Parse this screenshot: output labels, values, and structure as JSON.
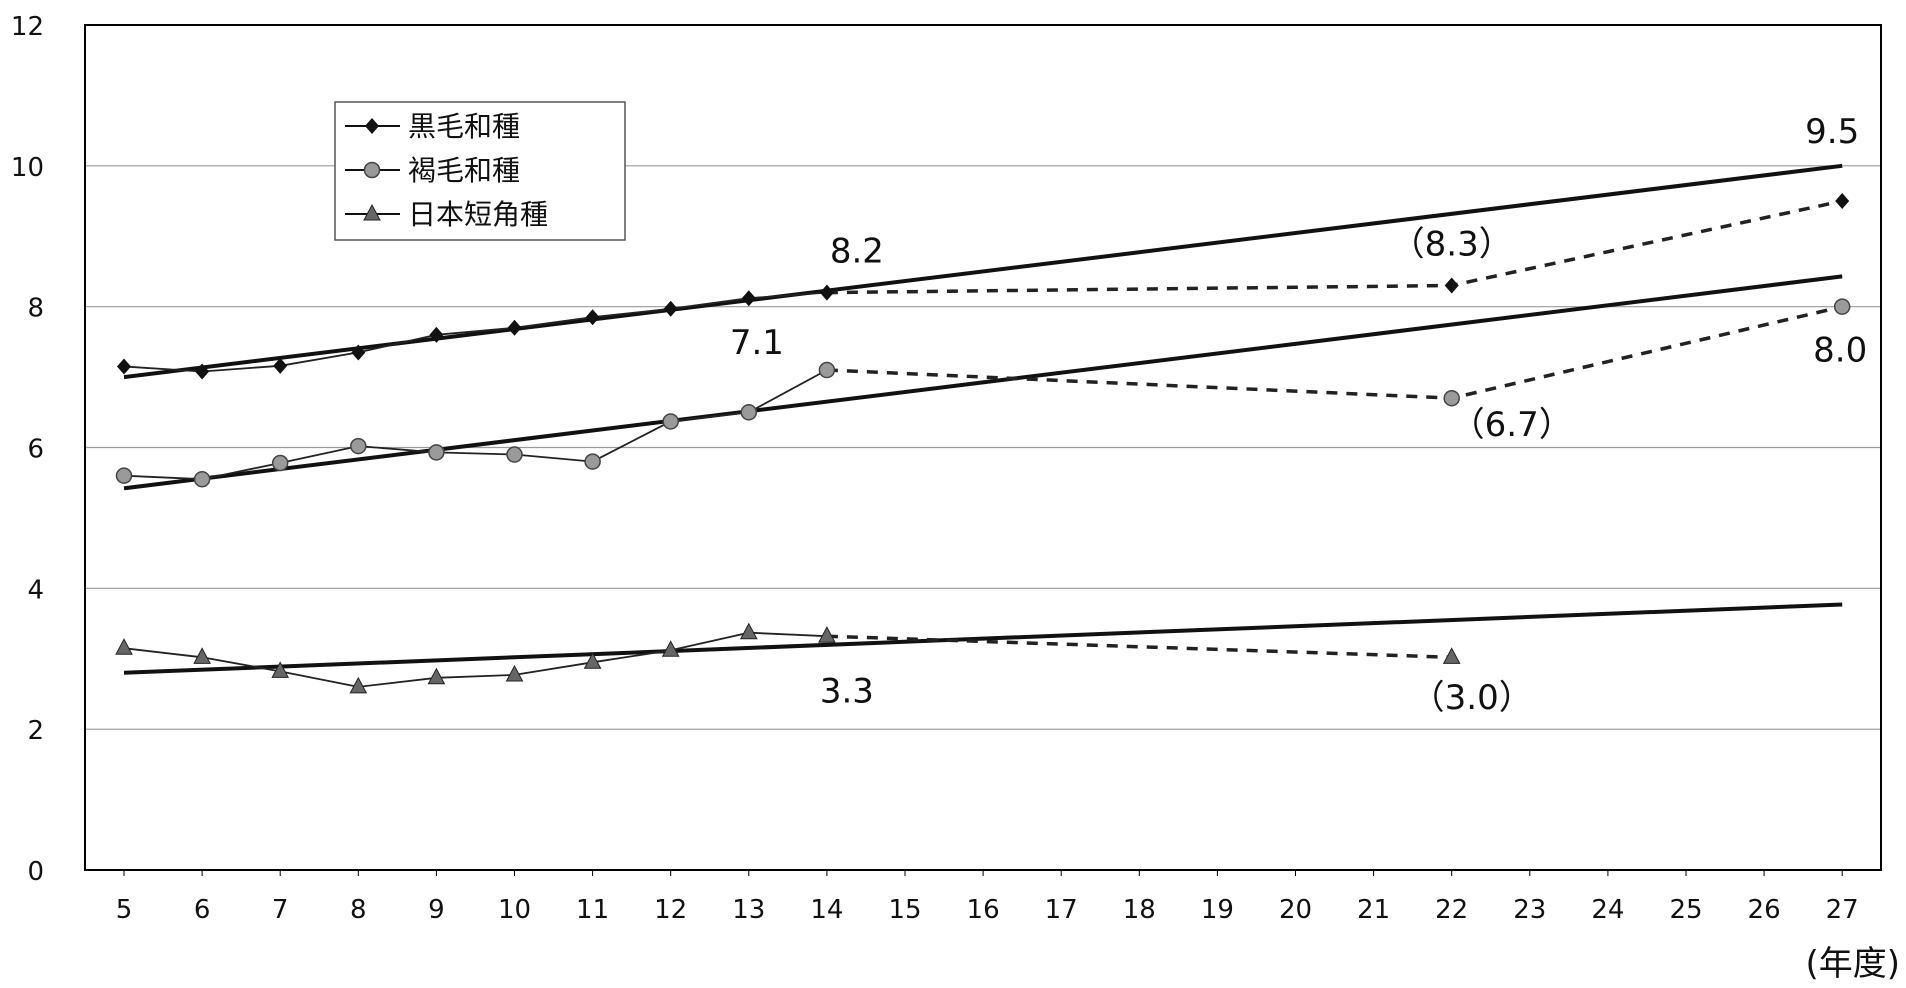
{
  "chart_data": {
    "type": "line",
    "title": "",
    "xlabel": "(年度)",
    "ylabel": "",
    "ylim": [
      0,
      12
    ],
    "y_ticks": [
      "0",
      "2",
      "4",
      "6",
      "8",
      "10",
      "12"
    ],
    "x_ticks": [
      "5",
      "6",
      "7",
      "8",
      "9",
      "10",
      "11",
      "12",
      "13",
      "14",
      "15",
      "16",
      "17",
      "18",
      "19",
      "20",
      "21",
      "22",
      "23",
      "24",
      "25",
      "26",
      "27"
    ],
    "grid": "horizontal",
    "legend_position": "top-left",
    "series": [
      {
        "name": "黒毛和種",
        "marker": "diamond",
        "color": "#111111",
        "points": [
          [
            5,
            7.15
          ],
          [
            6,
            7.08
          ],
          [
            7,
            7.16
          ],
          [
            8,
            7.35
          ],
          [
            9,
            7.6
          ],
          [
            10,
            7.7
          ],
          [
            11,
            7.85
          ],
          [
            12,
            7.97
          ],
          [
            13,
            8.12
          ],
          [
            14,
            8.2
          ]
        ],
        "projection": [
          [
            14,
            8.2
          ],
          [
            22,
            8.3
          ],
          [
            27,
            9.5
          ]
        ],
        "trend": [
          [
            5,
            7.0
          ],
          [
            27,
            10.0
          ]
        ]
      },
      {
        "name": "褐毛和種",
        "marker": "circle",
        "color": "#777777",
        "points": [
          [
            5,
            5.6
          ],
          [
            6,
            5.55
          ],
          [
            7,
            5.78
          ],
          [
            8,
            6.02
          ],
          [
            9,
            5.93
          ],
          [
            10,
            5.9
          ],
          [
            11,
            5.8
          ],
          [
            12,
            6.37
          ],
          [
            13,
            6.5
          ],
          [
            14,
            7.1
          ]
        ],
        "projection": [
          [
            14,
            7.1
          ],
          [
            22,
            6.7
          ],
          [
            27,
            8.0
          ]
        ],
        "trend": [
          [
            5,
            5.42
          ],
          [
            27,
            8.43
          ]
        ]
      },
      {
        "name": "日本短角種",
        "marker": "triangle",
        "color": "#555555",
        "points": [
          [
            5,
            3.15
          ],
          [
            6,
            3.02
          ],
          [
            7,
            2.82
          ],
          [
            8,
            2.6
          ],
          [
            9,
            2.73
          ],
          [
            10,
            2.77
          ],
          [
            11,
            2.95
          ],
          [
            12,
            3.12
          ],
          [
            13,
            3.37
          ],
          [
            14,
            3.32
          ]
        ],
        "projection": [
          [
            14,
            3.32
          ],
          [
            22,
            3.02
          ]
        ],
        "trend": [
          [
            5,
            2.8
          ],
          [
            27,
            3.77
          ]
        ]
      }
    ],
    "annotations": [
      {
        "text": "8.2",
        "x": 14,
        "y": 8.2
      },
      {
        "text": "（8.3）",
        "x": 22,
        "y": 8.3
      },
      {
        "text": "9.5",
        "x": 27,
        "y": 9.5
      },
      {
        "text": "7.1",
        "x": 14,
        "y": 7.1
      },
      {
        "text": "（6.7）",
        "x": 22,
        "y": 6.7
      },
      {
        "text": "8.0",
        "x": 27,
        "y": 8.0
      },
      {
        "text": "3.3",
        "x": 14,
        "y": 3.3
      },
      {
        "text": "（3.0）",
        "x": 22,
        "y": 3.0
      }
    ]
  }
}
